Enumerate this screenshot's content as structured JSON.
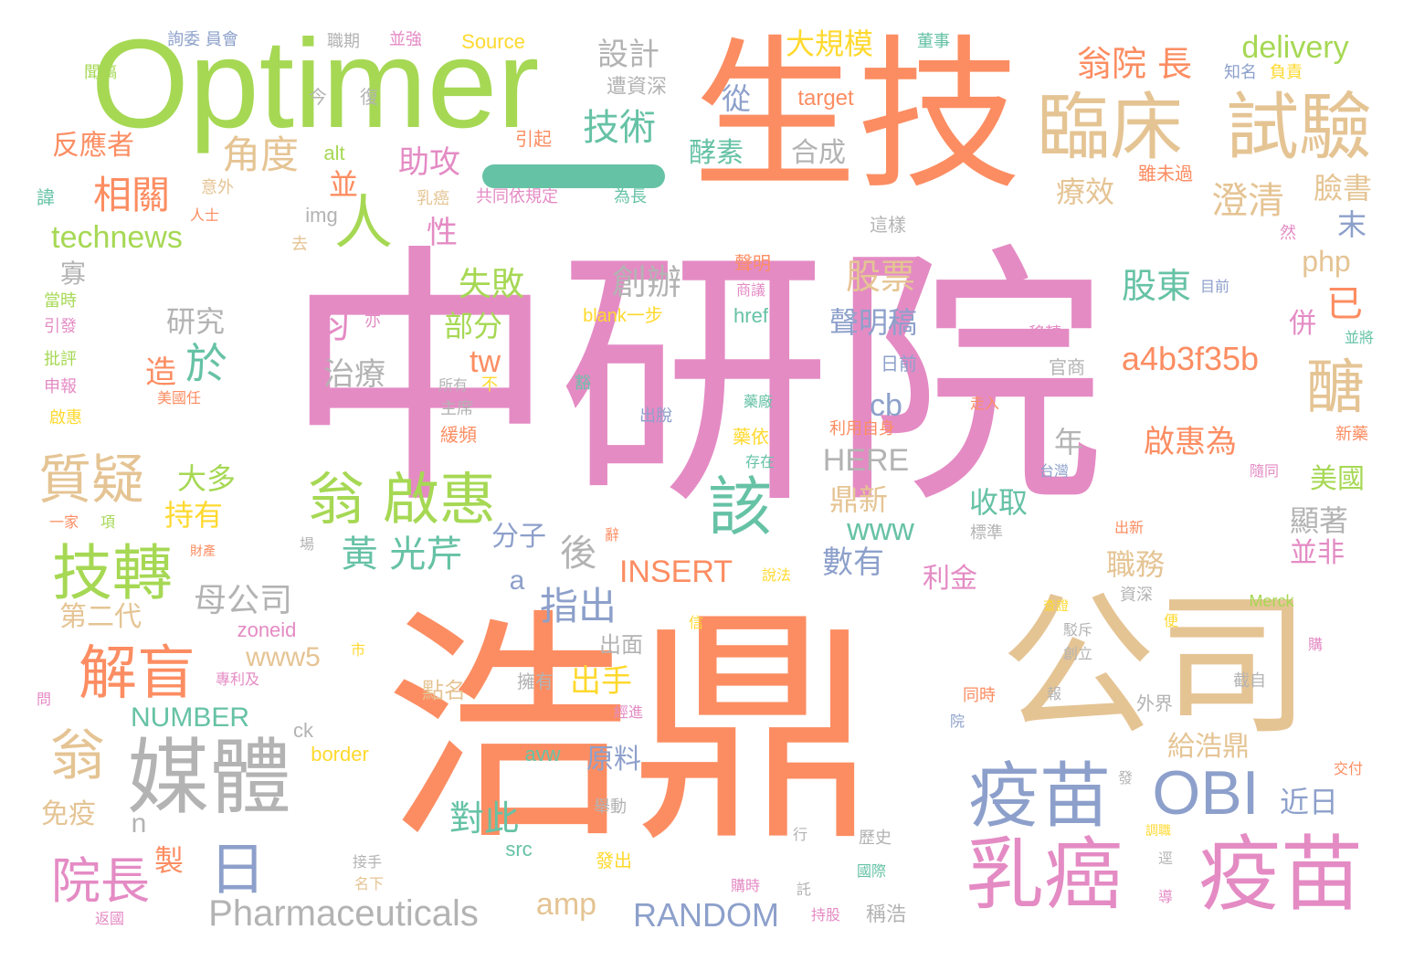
{
  "title": "Word cloud",
  "palette": {
    "pink": "#e48bc4",
    "orange": "#fc8d62",
    "green": "#a6d854",
    "tan": "#e5c494",
    "blue": "#8da0cb",
    "teal": "#66c2a5",
    "gray": "#b3b3b3",
    "yellow": "#ffd92f"
  },
  "dash_color": "#66c2a5",
  "words": [
    {
      "text": "中研院",
      "color": "#e48bc4"
    },
    {
      "text": "浩鼎",
      "color": "#fc8d62"
    },
    {
      "text": "生技",
      "color": "#fc8d62"
    },
    {
      "text": "Optimer",
      "color": "#a6d854"
    },
    {
      "text": "公司",
      "color": "#e5c494"
    },
    {
      "text": "臨床",
      "color": "#e5c494"
    },
    {
      "text": "試驗",
      "color": "#e5c494"
    },
    {
      "text": "疫苗",
      "color": "#8da0cb"
    },
    {
      "text": "疫苗",
      "color": "#e48bc4"
    },
    {
      "text": "乳癌",
      "color": "#e48bc4"
    },
    {
      "text": "OBI",
      "color": "#8da0cb"
    },
    {
      "text": "媒體",
      "color": "#b3b3b3"
    },
    {
      "text": "翁 啟惠",
      "color": "#a6d854"
    },
    {
      "text": "技轉",
      "color": "#a6d854"
    },
    {
      "text": "質疑",
      "color": "#e5c494"
    },
    {
      "text": "解盲",
      "color": "#fc8d62"
    },
    {
      "text": "翁",
      "color": "#e5c494"
    },
    {
      "text": "該",
      "color": "#66c2a5"
    },
    {
      "text": "醣",
      "color": "#e5c494"
    },
    {
      "text": "人",
      "color": "#a6d854"
    },
    {
      "text": "日",
      "color": "#8da0cb"
    },
    {
      "text": "院長",
      "color": "#e48bc4"
    },
    {
      "text": "Pharmaceuticals",
      "color": "#b3b3b3"
    },
    {
      "text": "RANDOM",
      "color": "#8da0cb"
    },
    {
      "text": "翁院 長",
      "color": "#fc8d62"
    },
    {
      "text": "delivery",
      "color": "#a6d854"
    },
    {
      "text": "大規模",
      "color": "#ffd92f"
    },
    {
      "text": "設計",
      "color": "#b3b3b3"
    },
    {
      "text": "技術",
      "color": "#66c2a5"
    },
    {
      "text": "角度",
      "color": "#e5c494"
    },
    {
      "text": "相關",
      "color": "#fc8d62"
    },
    {
      "text": "technews",
      "color": "#a6d854"
    },
    {
      "text": "反應者",
      "color": "#fc8d62"
    },
    {
      "text": "助攻",
      "color": "#e48bc4"
    },
    {
      "text": "並",
      "color": "#fc8d62"
    },
    {
      "text": "性",
      "color": "#e48bc4"
    },
    {
      "text": "從",
      "color": "#8da0cb"
    },
    {
      "text": "target",
      "color": "#fc8d62"
    },
    {
      "text": "酵素",
      "color": "#66c2a5"
    },
    {
      "text": "合成",
      "color": "#b3b3b3"
    },
    {
      "text": "療效",
      "color": "#e5c494"
    },
    {
      "text": "澄清",
      "color": "#e5c494"
    },
    {
      "text": "臉書",
      "color": "#e5c494"
    },
    {
      "text": "末",
      "color": "#8da0cb"
    },
    {
      "text": "php",
      "color": "#e5c494"
    },
    {
      "text": "股票",
      "color": "#e5c494"
    },
    {
      "text": "股東",
      "color": "#66c2a5"
    },
    {
      "text": "已",
      "color": "#fc8d62"
    },
    {
      "text": "聲明稿",
      "color": "#8da0cb"
    },
    {
      "text": "併",
      "color": "#e48bc4"
    },
    {
      "text": "a4b3f35b",
      "color": "#fc8d62"
    },
    {
      "text": "失敗",
      "color": "#a6d854"
    },
    {
      "text": "創辦",
      "color": "#b3b3b3"
    },
    {
      "text": "部分",
      "color": "#a6d854"
    },
    {
      "text": "均",
      "color": "#e48bc4"
    },
    {
      "text": "研究",
      "color": "#b3b3b3"
    },
    {
      "text": "治療",
      "color": "#b3b3b3"
    },
    {
      "text": "於",
      "color": "#66c2a5"
    },
    {
      "text": "造",
      "color": "#fc8d62"
    },
    {
      "text": "tw",
      "color": "#fc8d62"
    },
    {
      "text": "cb",
      "color": "#8da0cb"
    },
    {
      "text": "HERE",
      "color": "#b3b3b3"
    },
    {
      "text": "年",
      "color": "#b3b3b3"
    },
    {
      "text": "啟惠為",
      "color": "#fc8d62"
    },
    {
      "text": "美國",
      "color": "#a6d854"
    },
    {
      "text": "顯著",
      "color": "#b3b3b3"
    },
    {
      "text": "鼎新",
      "color": "#e5c494"
    },
    {
      "text": "收取",
      "color": "#66c2a5"
    },
    {
      "text": "www",
      "color": "#66c2a5"
    },
    {
      "text": "大多",
      "color": "#a6d854"
    },
    {
      "text": "持有",
      "color": "#ffd92f"
    },
    {
      "text": "黃 光芹",
      "color": "#66c2a5"
    },
    {
      "text": "分子",
      "color": "#8da0cb"
    },
    {
      "text": "後",
      "color": "#b3b3b3"
    },
    {
      "text": "INSERT",
      "color": "#fc8d62"
    },
    {
      "text": "數有",
      "color": "#8da0cb"
    },
    {
      "text": "利金",
      "color": "#e48bc4"
    },
    {
      "text": "職務",
      "color": "#e5c494"
    },
    {
      "text": "並非",
      "color": "#e48bc4"
    },
    {
      "text": "母公司",
      "color": "#b3b3b3"
    },
    {
      "text": "a",
      "color": "#8da0cb"
    },
    {
      "text": "指出",
      "color": "#8da0cb"
    },
    {
      "text": "第二代",
      "color": "#e5c494"
    },
    {
      "text": "www5",
      "color": "#e5c494"
    },
    {
      "text": "出手",
      "color": "#ffd92f"
    },
    {
      "text": "NUMBER",
      "color": "#66c2a5"
    },
    {
      "text": "給浩鼎",
      "color": "#e5c494"
    },
    {
      "text": "原料",
      "color": "#8da0cb"
    },
    {
      "text": "近日",
      "color": "#8da0cb"
    },
    {
      "text": "對此",
      "color": "#66c2a5"
    },
    {
      "text": "免疫",
      "color": "#e5c494"
    },
    {
      "text": "n",
      "color": "#b3b3b3"
    },
    {
      "text": "製",
      "color": "#fc8d62"
    },
    {
      "text": "amp",
      "color": "#e5c494"
    },
    {
      "text": "src",
      "color": "#66c2a5"
    },
    {
      "text": "avw",
      "color": "#66c2a5"
    },
    {
      "text": "border",
      "color": "#ffd92f"
    },
    {
      "text": "ck",
      "color": "#b3b3b3"
    },
    {
      "text": "zoneid",
      "color": "#e48bc4"
    },
    {
      "text": "點名",
      "color": "#e5c494"
    },
    {
      "text": "出面",
      "color": "#b3b3b3"
    },
    {
      "text": "擁有",
      "color": "#b3b3b3"
    },
    {
      "text": "blank一步",
      "color": "#ffd92f"
    },
    {
      "text": "href",
      "color": "#66c2a5"
    },
    {
      "text": "img",
      "color": "#b3b3b3"
    },
    {
      "text": "alt",
      "color": "#a6d854"
    },
    {
      "text": "寡",
      "color": "#b3b3b3"
    },
    {
      "text": "Source",
      "color": "#ffd92f"
    },
    {
      "text": "今",
      "color": "#b3b3b3"
    },
    {
      "text": "復",
      "color": "#b3b3b3"
    },
    {
      "text": "遭資深",
      "color": "#b3b3b3"
    },
    {
      "text": "引起",
      "color": "#fc8d62"
    },
    {
      "text": "乳癌",
      "color": "#e5c494"
    },
    {
      "text": "共同依規定",
      "color": "#e48bc4"
    },
    {
      "text": "為長",
      "color": "#66c2a5"
    },
    {
      "text": "意外",
      "color": "#e5c494"
    },
    {
      "text": "人士",
      "color": "#fc8d62"
    },
    {
      "text": "去",
      "color": "#e5c494"
    },
    {
      "text": "這樣",
      "color": "#b3b3b3"
    },
    {
      "text": "雖未過",
      "color": "#fc8d62"
    },
    {
      "text": "然",
      "color": "#e48bc4"
    },
    {
      "text": "知名",
      "color": "#8da0cb"
    },
    {
      "text": "負責",
      "color": "#ffd92f"
    },
    {
      "text": "董事",
      "color": "#66c2a5"
    },
    {
      "text": "並強",
      "color": "#e48bc4"
    },
    {
      "text": "職期",
      "color": "#b3b3b3"
    },
    {
      "text": "詢委 員會",
      "color": "#8da0cb"
    },
    {
      "text": "聞稿",
      "color": "#a6d854"
    },
    {
      "text": "諱",
      "color": "#66c2a5"
    },
    {
      "text": "當時",
      "color": "#a6d854"
    },
    {
      "text": "引發",
      "color": "#e48bc4"
    },
    {
      "text": "批評",
      "color": "#a6d854"
    },
    {
      "text": "申報",
      "color": "#e48bc4"
    },
    {
      "text": "啟惠",
      "color": "#ffd92f"
    },
    {
      "text": "美國任",
      "color": "#fc8d62"
    },
    {
      "text": "亦",
      "color": "#e48bc4"
    },
    {
      "text": "所有",
      "color": "#b3b3b3"
    },
    {
      "text": "不",
      "color": "#ffd92f"
    },
    {
      "text": "主席",
      "color": "#b3b3b3"
    },
    {
      "text": "緩頻",
      "color": "#fc8d62"
    },
    {
      "text": "豁",
      "color": "#66c2a5"
    },
    {
      "text": "出脫",
      "color": "#8da0cb"
    },
    {
      "text": "聲明",
      "color": "#fc8d62"
    },
    {
      "text": "商議",
      "color": "#e48bc4"
    },
    {
      "text": "目前",
      "color": "#8da0cb"
    },
    {
      "text": "移轉",
      "color": "#e48bc4"
    },
    {
      "text": "官商",
      "color": "#b3b3b3"
    },
    {
      "text": "日前",
      "color": "#8da0cb"
    },
    {
      "text": "並將",
      "color": "#66c2a5"
    },
    {
      "text": "藥廠",
      "color": "#66c2a5"
    },
    {
      "text": "走入",
      "color": "#fc8d62"
    },
    {
      "text": "利用自身",
      "color": "#fc8d62"
    },
    {
      "text": "新藥",
      "color": "#fc8d62"
    },
    {
      "text": "藥依",
      "color": "#ffd92f"
    },
    {
      "text": "存在",
      "color": "#66c2a5"
    },
    {
      "text": "台灣",
      "color": "#8da0cb"
    },
    {
      "text": "隨同",
      "color": "#e48bc4"
    },
    {
      "text": "一家",
      "color": "#fc8d62"
    },
    {
      "text": "項",
      "color": "#a6d854"
    },
    {
      "text": "財產",
      "color": "#fc8d62"
    },
    {
      "text": "場",
      "color": "#b3b3b3"
    },
    {
      "text": "辭",
      "color": "#fc8d62"
    },
    {
      "text": "標準",
      "color": "#b3b3b3"
    },
    {
      "text": "出新",
      "color": "#fc8d62"
    },
    {
      "text": "說法",
      "color": "#ffd92f"
    },
    {
      "text": "查證",
      "color": "#ffd92f"
    },
    {
      "text": "資深",
      "color": "#b3b3b3"
    },
    {
      "text": "駁斥",
      "color": "#b3b3b3"
    },
    {
      "text": "Merck",
      "color": "#a6d854"
    },
    {
      "text": "信",
      "color": "#ffd92f"
    },
    {
      "text": "市",
      "color": "#ffd92f"
    },
    {
      "text": "專利及",
      "color": "#e48bc4"
    },
    {
      "text": "便",
      "color": "#ffd92f"
    },
    {
      "text": "創立",
      "color": "#b3b3b3"
    },
    {
      "text": "購",
      "color": "#e48bc4"
    },
    {
      "text": "問",
      "color": "#e48bc4"
    },
    {
      "text": "經進",
      "color": "#e48bc4"
    },
    {
      "text": "同時",
      "color": "#fc8d62"
    },
    {
      "text": "報",
      "color": "#b3b3b3"
    },
    {
      "text": "截自",
      "color": "#b3b3b3"
    },
    {
      "text": "外界",
      "color": "#b3b3b3"
    },
    {
      "text": "院",
      "color": "#8da0cb"
    },
    {
      "text": "發",
      "color": "#b3b3b3"
    },
    {
      "text": "交付",
      "color": "#fc8d62"
    },
    {
      "text": "舉動",
      "color": "#b3b3b3"
    },
    {
      "text": "發出",
      "color": "#ffd92f"
    },
    {
      "text": "行",
      "color": "#b3b3b3"
    },
    {
      "text": "歷史",
      "color": "#b3b3b3"
    },
    {
      "text": "調職",
      "color": "#ffd92f"
    },
    {
      "text": "逕",
      "color": "#b3b3b3"
    },
    {
      "text": "接手",
      "color": "#b3b3b3"
    },
    {
      "text": "名下",
      "color": "#e5c494"
    },
    {
      "text": "國際",
      "color": "#66c2a5"
    },
    {
      "text": "購時",
      "color": "#e48bc4"
    },
    {
      "text": "託",
      "color": "#b3b3b3"
    },
    {
      "text": "導",
      "color": "#e48bc4"
    },
    {
      "text": "返國",
      "color": "#e48bc4"
    },
    {
      "text": "持股",
      "color": "#e48bc4"
    },
    {
      "text": "稱浩",
      "color": "#b3b3b3"
    }
  ]
}
